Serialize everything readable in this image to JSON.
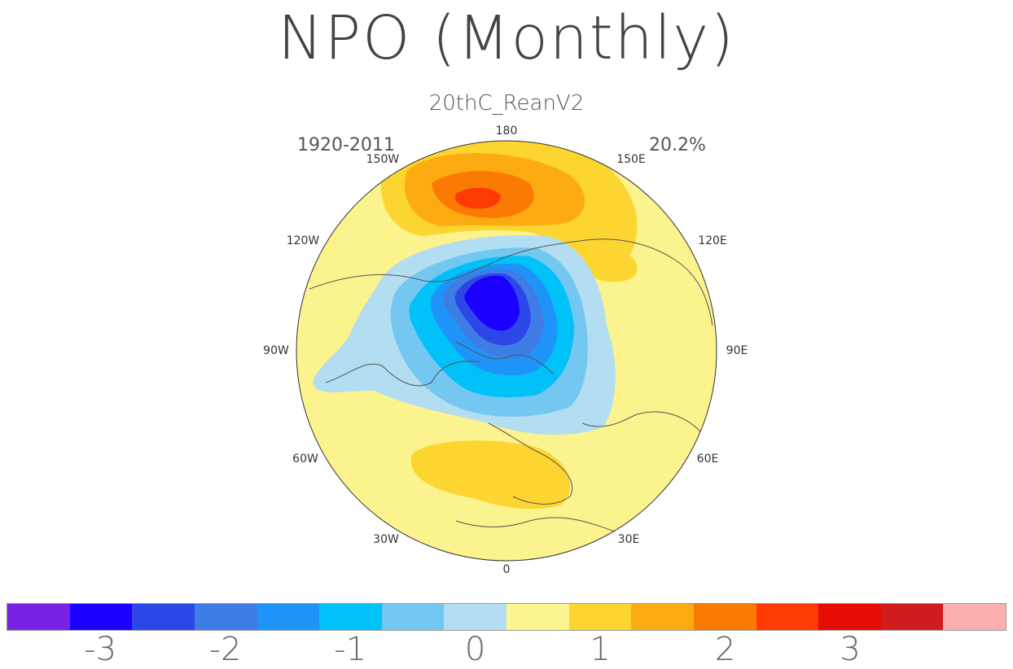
{
  "figure": {
    "title": "NPO (Monthly)",
    "subtitle": "20thC_ReanV2",
    "period": "1920-2011",
    "variance": "20.2%"
  },
  "map": {
    "projection": "north polar stereographic",
    "longitude_labels": [
      "180",
      "150E",
      "120E",
      "90E",
      "60E",
      "30E",
      "0",
      "30W",
      "60W",
      "90W",
      "120W",
      "150W"
    ],
    "ocean_fill": "#fbf38e",
    "coastline_color": "#555555"
  },
  "colorbar": {
    "colors": [
      "#7a21e6",
      "#1b00ff",
      "#2c46e8",
      "#3f7de6",
      "#1f94f8",
      "#00c1f8",
      "#74c7f0",
      "#b3def1",
      "#fdf58f",
      "#fdd530",
      "#fcac10",
      "#fb7a04",
      "#fd3a04",
      "#e50c04",
      "#d01c1c",
      "#fcb0b0"
    ],
    "tick_labels": [
      "-3",
      "-2",
      "-1",
      "0",
      "1",
      "2",
      "3"
    ]
  }
}
